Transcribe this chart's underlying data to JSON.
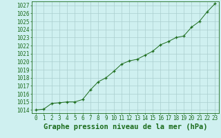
{
  "x": [
    0,
    1,
    2,
    3,
    4,
    5,
    6,
    7,
    8,
    9,
    10,
    11,
    12,
    13,
    14,
    15,
    16,
    17,
    18,
    19,
    20,
    21,
    22,
    23
  ],
  "y": [
    1014.0,
    1014.1,
    1014.8,
    1014.9,
    1015.0,
    1015.0,
    1015.3,
    1016.5,
    1017.5,
    1018.0,
    1018.8,
    1019.7,
    1020.1,
    1020.3,
    1020.8,
    1021.3,
    1022.1,
    1022.5,
    1023.0,
    1023.2,
    1024.3,
    1025.0,
    1026.2,
    1027.2
  ],
  "line_color": "#1a6b1a",
  "marker_color": "#1a6b1a",
  "bg_color": "#cff0f0",
  "grid_color": "#aacece",
  "ylabel_ticks": [
    1014,
    1015,
    1016,
    1017,
    1018,
    1019,
    1020,
    1021,
    1022,
    1023,
    1024,
    1025,
    1026,
    1027
  ],
  "ylim": [
    1013.6,
    1027.5
  ],
  "xlim": [
    -0.5,
    23.5
  ],
  "xlabel": "Graphe pression niveau de la mer (hPa)",
  "tick_fontsize": 5.5,
  "label_fontsize": 7.5
}
